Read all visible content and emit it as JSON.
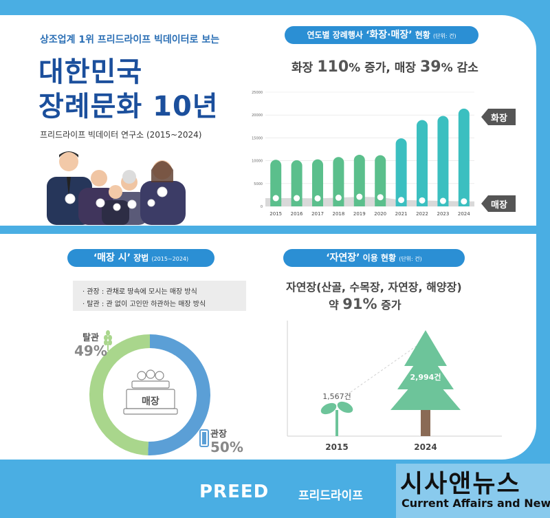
{
  "header": {
    "subtitle": "상조업계 1위 프리드라이프 빅데이터로 보는",
    "title_line1": "대한민국",
    "title_line2": "장례문화 10년",
    "source": "프리드라이프 빅데이터 연구소 (2015~2024)"
  },
  "chart1": {
    "pill_pre": "연도별 장례행사 ",
    "pill_hl": "‘화장·매장’",
    "pill_post": " 현황 ",
    "pill_unit": "(단위: 건)",
    "summary_a": "화장 ",
    "summary_a_num": "110",
    "summary_a_post": "% 증가, 매장 ",
    "summary_b_num": "39",
    "summary_b_post": "% 감소",
    "tag_cremation": "화장",
    "tag_burial": "매장"
  },
  "chart2": {
    "pill_hl": "‘매장 시’",
    "pill_post": " 장법 ",
    "pill_unit": "(2015~2024)",
    "note1": "· 관장 : 관채로 땅속에 모시는 매장 방식",
    "note2": "· 탈관 : 관 없이 고인만 하관하는 매장 방식",
    "center_label": "매장",
    "label_a": "탈관",
    "pct_a": "49%",
    "label_b": "관장",
    "pct_b": "50%"
  },
  "chart3": {
    "pill_hl": "‘자연장’",
    "pill_post": " 이용 현황 ",
    "pill_unit": "(단위: 건)",
    "summary1": "자연장(산골, 수목장, 자연장, 해양장)",
    "summary2_pre": "약 ",
    "summary2_num": "91%",
    "summary2_post": " 증가",
    "value_2015": "1,567건",
    "value_2024": "2,994건",
    "year_2015": "2015",
    "year_2024": "2024"
  },
  "footer": {
    "brand": "PREED",
    "brand_kr": "프리드라이프",
    "watermark": "시사앤뉴스",
    "watermark_en": "Current Affairs and News"
  },
  "colors": {
    "accent": "#2b8fd4",
    "bar_green": "#5bbf8c",
    "bar_teal": "#3bbfc0",
    "burial_grey": "#d9d9d9",
    "donut_blue": "#5b9fd6",
    "donut_green": "#a9d68c",
    "tree": "#6dc49a"
  },
  "chart_data": [
    {
      "type": "bar",
      "categories": [
        "2015",
        "2016",
        "2017",
        "2018",
        "2019",
        "2020",
        "2021",
        "2022",
        "2023",
        "2024"
      ],
      "series": [
        {
          "name": "화장",
          "values": [
            10200,
            10100,
            10300,
            10800,
            11300,
            11200,
            14900,
            18900,
            19800,
            21400
          ]
        },
        {
          "name": "매장",
          "values": [
            1800,
            1800,
            1750,
            1900,
            2100,
            2000,
            1400,
            1300,
            1200,
            1100
          ]
        }
      ],
      "yticks": [
        "0",
        "5000",
        "10000",
        "15000",
        "20000",
        "25000"
      ],
      "ylim": [
        0,
        25000
      ]
    },
    {
      "type": "pie",
      "categories": [
        "탈관",
        "관장"
      ],
      "values": [
        49,
        50
      ]
    },
    {
      "type": "bar",
      "categories": [
        "2015",
        "2024"
      ],
      "values": [
        1567,
        2994
      ]
    }
  ]
}
